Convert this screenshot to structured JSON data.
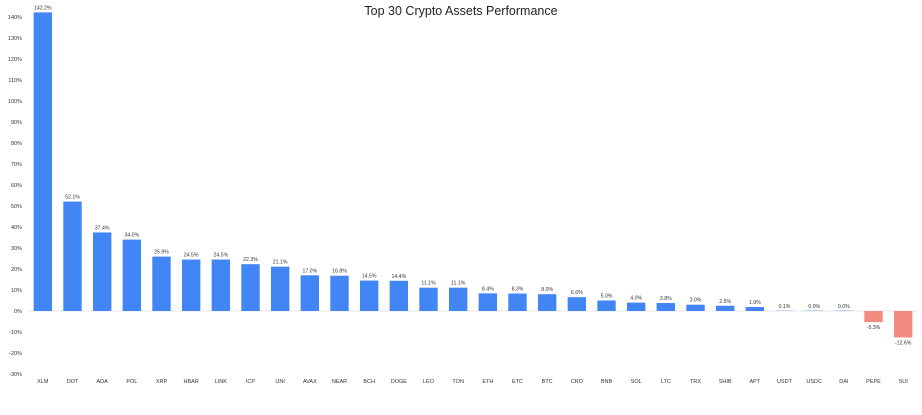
{
  "chart_data": {
    "type": "bar",
    "title": "Top 30 Crypto Assets Performance",
    "xlabel": "",
    "ylabel": "",
    "ylim": [
      -30,
      140
    ],
    "yticks": [
      -30,
      -20,
      -10,
      0,
      10,
      20,
      30,
      40,
      50,
      60,
      70,
      80,
      90,
      100,
      110,
      120,
      130,
      140
    ],
    "ytick_suffix": "%",
    "grid": false,
    "legend": "none",
    "colors": {
      "positive": "#4285f4",
      "negative": "#f28b82"
    },
    "categories": [
      "XLM",
      "DOT",
      "ADA",
      "POL",
      "XRP",
      "HBAR",
      "LINK",
      "ICP",
      "UNI",
      "AVAX",
      "NEAR",
      "BCH",
      "DOGE",
      "LEO",
      "TON",
      "ETH",
      "ETC",
      "BTC",
      "CRO",
      "BNB",
      "SOL",
      "LTC",
      "TRX",
      "SHIB",
      "APT",
      "USDT",
      "USDC",
      "DAI",
      "PEPE",
      "SUI"
    ],
    "values": [
      142.2,
      52.1,
      37.4,
      34.0,
      25.9,
      24.5,
      24.5,
      22.3,
      21.1,
      17.0,
      16.8,
      14.5,
      14.4,
      11.1,
      11.1,
      8.4,
      8.3,
      8.0,
      6.6,
      5.0,
      4.0,
      3.8,
      3.0,
      2.5,
      1.9,
      0.1,
      0.0,
      0.0,
      -5.3,
      -12.6
    ],
    "labels": [
      "142.2%",
      "52.1%",
      "37.4%",
      "34.0%",
      "25.9%",
      "24.5%",
      "24.5%",
      "22.3%",
      "21.1%",
      "17.0%",
      "16.8%",
      "14.5%",
      "14.4%",
      "11.1%",
      "11.1%",
      "8.4%",
      "8.3%",
      "8.0%",
      "6.6%",
      "5.0%",
      "4.0%",
      "3.8%",
      "3.0%",
      "2.5%",
      "1.9%",
      "0.1%",
      "0.0%",
      "0.0%",
      "-5.3%",
      "-12.6%"
    ]
  }
}
